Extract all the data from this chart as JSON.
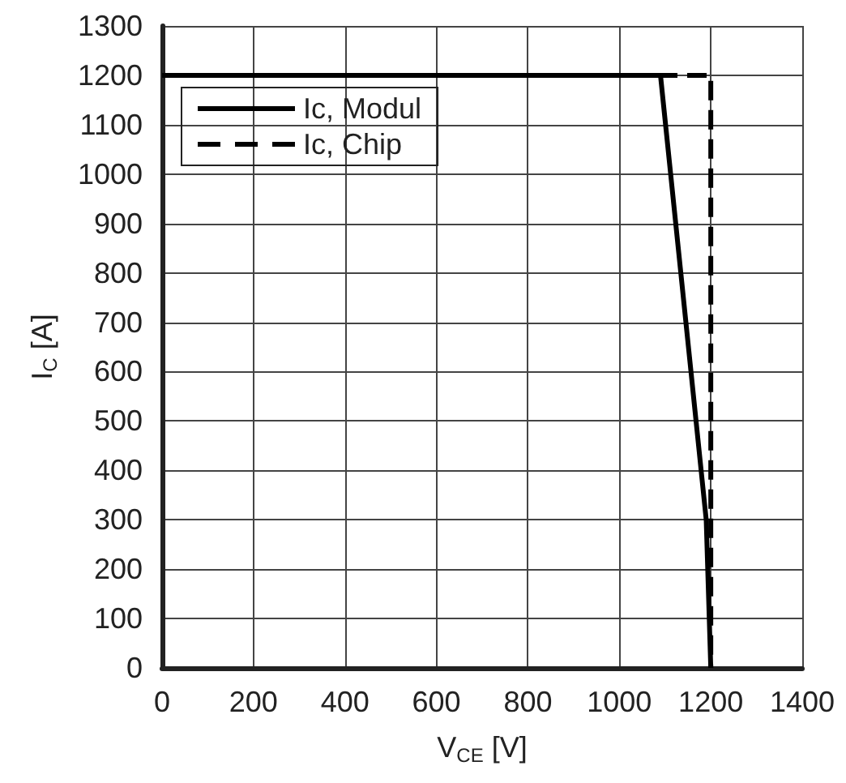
{
  "chart_data": {
    "type": "line",
    "xlabel": "V$_{CE}$ [V]",
    "ylabel": "I$_{C}$ [A]",
    "xlim": [
      0,
      1400
    ],
    "xticks": [
      0,
      200,
      400,
      600,
      800,
      1000,
      1200,
      1400
    ],
    "ylim": [
      0,
      1300
    ],
    "yticks": [
      0,
      100,
      200,
      300,
      400,
      500,
      600,
      700,
      800,
      900,
      1000,
      1100,
      1200,
      1300
    ],
    "grid": true,
    "legend": "top left",
    "marker": "none",
    "series": [
      {
        "name": "Ic, Modul",
        "color": "#000000",
        "line_style": "solid",
        "x": [
          0,
          1090,
          1190,
          1200
        ],
        "values": [
          1200,
          1200,
          300,
          0
        ]
      },
      {
        "name": "Ic, Chip",
        "color": "#000000",
        "line_style": "dashed",
        "x": [
          0,
          1200,
          1200
        ],
        "values": [
          1200,
          1200,
          0
        ]
      }
    ]
  }
}
